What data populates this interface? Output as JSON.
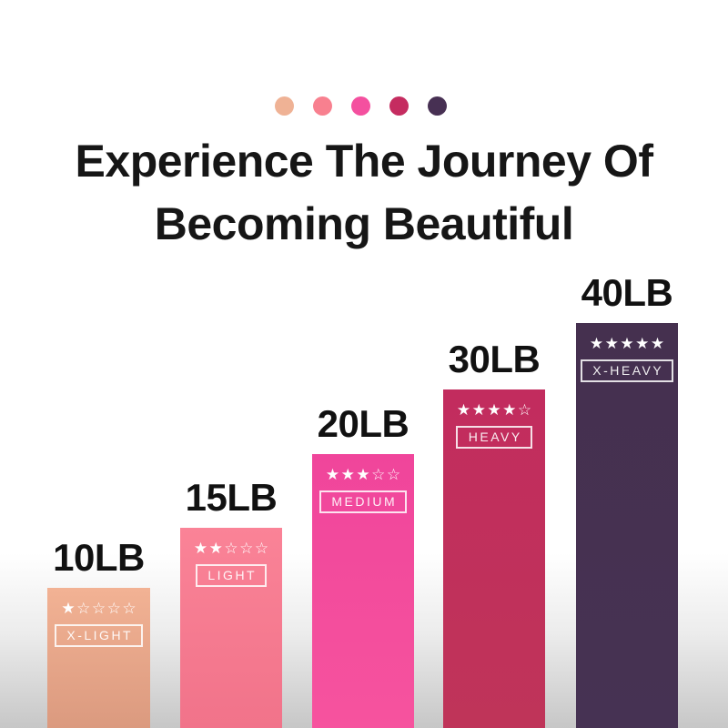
{
  "title": {
    "line1": "Experience The Journey Of",
    "line2": "Becoming Beautiful"
  },
  "palette_dots": [
    {
      "name": "x-light-dot",
      "color": "#EFB295"
    },
    {
      "name": "light-dot",
      "color": "#F8808F"
    },
    {
      "name": "medium-dot",
      "color": "#F4509F"
    },
    {
      "name": "heavy-dot",
      "color": "#C52C60"
    },
    {
      "name": "x-heavy-dot",
      "color": "#473053"
    }
  ],
  "chart_data": {
    "type": "bar",
    "title": "Experience The Journey Of Becoming Beautiful",
    "categories": [
      "10LB",
      "15LB",
      "20LB",
      "30LB",
      "40LB"
    ],
    "series": [
      {
        "name": "resistance-band-weight-lb",
        "values": [
          10,
          15,
          20,
          30,
          40
        ]
      }
    ],
    "xlabel": "",
    "ylabel": "",
    "legend": false,
    "grid": false,
    "bars": [
      {
        "weight_label": "10LB",
        "level_label": "X-LIGHT",
        "stars_filled": 1,
        "stars_max": 5,
        "color_top": "#F2B294",
        "color_bottom": "#DB9A7F"
      },
      {
        "weight_label": "15LB",
        "level_label": "LIGHT",
        "stars_filled": 2,
        "stars_max": 5,
        "color_top": "#FA8397",
        "color_bottom": "#F1738A"
      },
      {
        "weight_label": "20LB",
        "level_label": "MEDIUM",
        "stars_filled": 3,
        "stars_max": 5,
        "color_top": "#F0459B",
        "color_bottom": "#F6539E"
      },
      {
        "weight_label": "30LB",
        "level_label": "HEAVY",
        "stars_filled": 4,
        "stars_max": 5,
        "color_top": "#C22C5E",
        "color_bottom": "#BF3459"
      },
      {
        "weight_label": "40LB",
        "level_label": "X-HEAVY",
        "stars_filled": 5,
        "stars_max": 5,
        "color_top": "#45304F",
        "color_bottom": "#463253"
      }
    ]
  },
  "colors": {
    "background_top": "#FFFFFF",
    "background_bottom": "#C7C7C7",
    "text": "#161616",
    "star_color": "#FFFFFF"
  }
}
